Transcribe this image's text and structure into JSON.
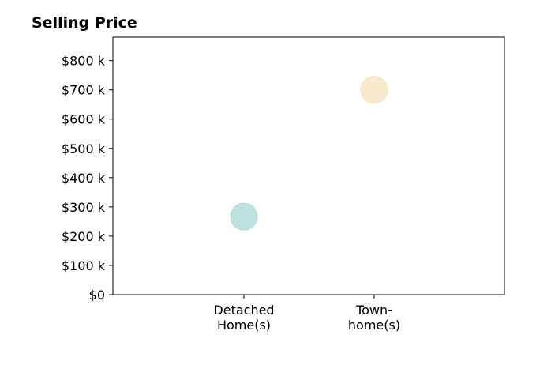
{
  "chart_data": {
    "type": "scatter",
    "title": "Selling Price",
    "xlabel": "",
    "ylabel": "",
    "categories": [
      [
        "Detached",
        "Home(s)"
      ],
      [
        "Town-",
        "home(s)"
      ]
    ],
    "points": [
      {
        "category_index": 0,
        "value": 267000,
        "color": "#a8dad3"
      },
      {
        "category_index": 1,
        "value": 700000,
        "color": "#f7e3bf"
      }
    ],
    "y_ticks": [
      0,
      100000,
      200000,
      300000,
      400000,
      500000,
      600000,
      700000,
      800000
    ],
    "y_tick_labels": [
      "$0",
      "$100 k",
      "$200 k",
      "$300 k",
      "$400 k",
      "$500 k",
      "$600 k",
      "$700 k",
      "$800 k"
    ],
    "ylim": [
      0,
      880000
    ],
    "grid": false,
    "marker_opacity": 0.75
  }
}
